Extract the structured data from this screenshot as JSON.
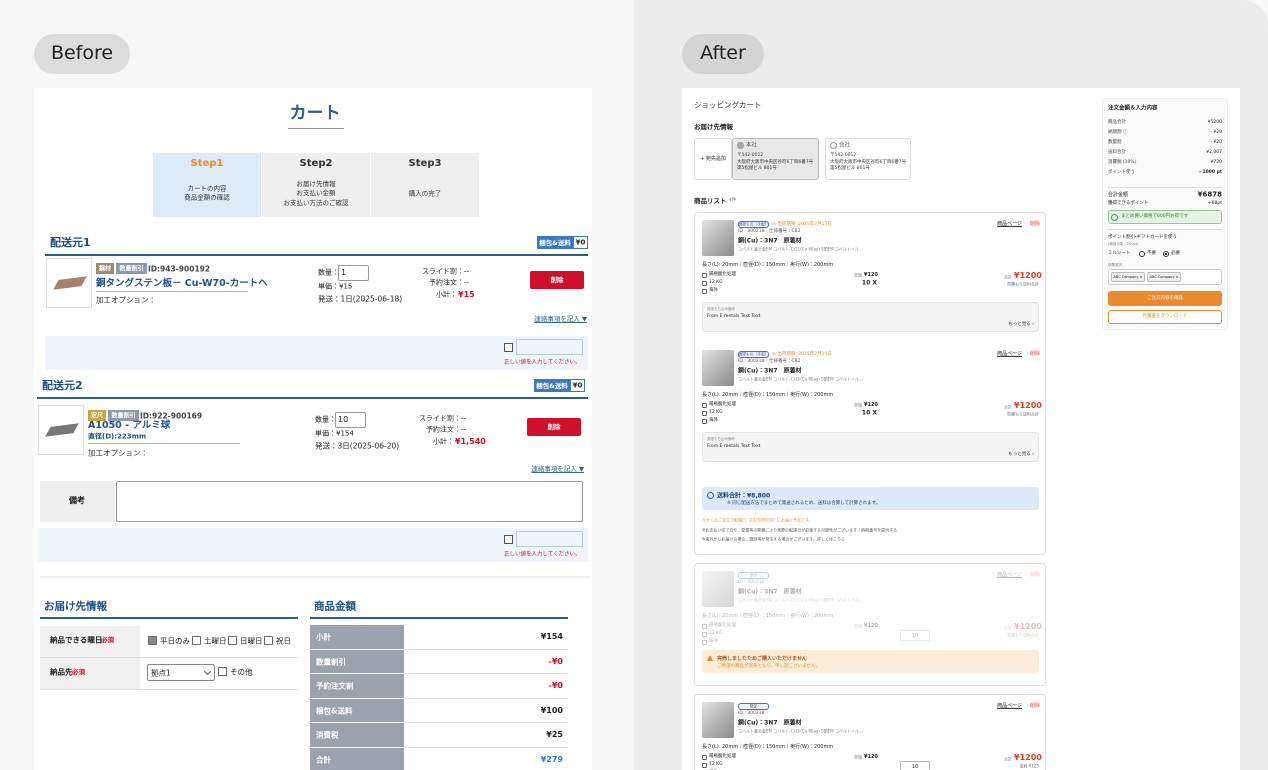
{
  "tabs": {
    "before": "Before",
    "after": "After"
  },
  "before": {
    "title": "カート",
    "steps": [
      {
        "name": "Step1",
        "desc": "カートの内容\n商品金額の確認"
      },
      {
        "name": "Step2",
        "desc": "お届け先情報\nお支払い金額\nお支払い方法のご確認"
      },
      {
        "name": "Step3",
        "desc": "購入の完了"
      }
    ],
    "shipments": [
      {
        "heading": "配送元1",
        "badge": "梱包&送料",
        "fee": "¥0",
        "tags": [
          "鋼材",
          "数量割引"
        ],
        "id": "ID:943-900192",
        "name": "銅タングステン板－ Cu-W70-カートへ",
        "option": "加工オプション：",
        "qty_label": "数量：",
        "qty": "1",
        "unit": "単価：¥15",
        "ship": "発送：1日(2025-06-18)",
        "slide": "スライド割：--",
        "reserve": "予約注文：--",
        "subtotal_label": "小計：",
        "subtotal": "¥15",
        "delete": "削除",
        "note": "連絡事項を記入 ▼",
        "error": "正しい値を入力してください。"
      },
      {
        "heading": "配送元2",
        "badge": "梱包&送料",
        "fee": "¥0",
        "tags": [
          "定尺",
          "数量割引"
        ],
        "id": "ID:922-900169",
        "name": "A1050 - アルミ球",
        "spec": "直径(D):223mm",
        "option": "加工オプション：",
        "qty_label": "数量：",
        "qty": "10",
        "unit": "単価：¥154",
        "ship": "発送：3日(2025-06-20)",
        "slide": "スライド割：--",
        "reserve": "予約注文：--",
        "subtotal_label": "小計：",
        "subtotal": "¥1,540",
        "delete": "削除",
        "note": "連絡事項を記入 ▼",
        "error": "正しい値を入力してください。"
      }
    ],
    "remarks": "備考",
    "delivery": {
      "heading": "お届け先情報",
      "days_label": "納品できる曜日",
      "dest_label": "納品先",
      "required": "必須",
      "days": [
        "平日のみ",
        "土曜日",
        "日曜日",
        "祝日"
      ],
      "dest": "拠点1",
      "other": "その他"
    },
    "amount": {
      "heading": "商品金額",
      "rows": [
        [
          "小計",
          "¥154"
        ],
        [
          "数量割引",
          "-¥0"
        ],
        [
          "予約注文割",
          "-¥0"
        ],
        [
          "梱包&送料",
          "¥100"
        ],
        [
          "消費税",
          "¥25"
        ],
        [
          "合計",
          "¥279"
        ]
      ]
    }
  },
  "after": {
    "title": "ショッピングカート",
    "address_heading": "お届け先情報",
    "add": "+ 宛先追加",
    "addresses": [
      {
        "name": "本社",
        "lines": "〒542-0012\n大阪府大阪市中央区谷町6丁目6番7号\n第5松屋ビル 801号"
      },
      {
        "name": "会社",
        "lines": "〒542-0012\n大阪府大阪市中央区谷町6丁目6番7号\n第5松屋ビル 801号"
      }
    ],
    "list_heading": "商品リスト",
    "count": "4件",
    "groups": [
      {
        "items": [
          {
            "tags": [
              "現場もの（手配）"
            ],
            "deadline": "◎ 出荷期限: 2025年7月15日",
            "id": "ID：300218｜仕様番号：C82",
            "name": "銅(Cu)：3N7　原着材",
            "desc": "コバルト基合金EM コバルト-Cr21(Cu 60ay) 5閉EM コバルトイル...",
            "size": "長さ(L): 20mm｜直径(D)：150mm｜奥行(W)：200mm",
            "finish": "陽極酸化処理",
            "weight": "12 KG",
            "origin": "海外",
            "unit_label": "単価",
            "unit": "¥120",
            "qty": "10 X",
            "total_label": "合計",
            "total": "¥1200",
            "ship_note": "見積もり送料合計",
            "page": "商品ページ",
            "delete": "削除",
            "memo_label": "発送もち込み備考",
            "memo": "From E-metals Text Text",
            "more": "もっと見る ›"
          },
          {
            "tags": [
              "現場もの（手配）"
            ],
            "deadline": "◎ 出荷期限: 2025年7月15日",
            "id": "ID：300218｜仕様番号：C82",
            "name": "銅(Cu)：3N7　原着材",
            "desc": "コバルト基合金EM コバルト-Cr21(Cu 60ay) 5閉EM コバルトイル...",
            "size": "長さ(L): 20mm｜直径(D)：150mm｜奥行(W)：200mm",
            "finish": "陽極酸化処理",
            "weight": "12 KG",
            "origin": "海外",
            "unit_label": "単価",
            "unit": "¥120",
            "qty": "10 X",
            "total_label": "合計",
            "total": "¥1200",
            "ship_note": "見積もり送料合計",
            "page": "商品ページ",
            "delete": "削除",
            "memo_label": "発送もち込み備考",
            "memo": "From E-metals Text Text",
            "more": "もっと見る ›"
          }
        ],
        "shipping": {
          "total": "送料合計：¥8,800",
          "note": "※ 同じ配送方法でまとめて発送されるため、送料は合算して計算されます。"
        },
        "notes": [
          "今からのご注文で配達日（2025/06/30）にお届け予定です。",
          "※お支払い完了日や、受領等の影響により実際の配達日が前後する可能性がございます｜納期番号を提供する",
          "※海外からお届けの場合、規制等が発生する場合がございます。詳しくはこちら"
        ]
      },
      {
        "items": [
          {
            "tags": [
              "限定"
            ],
            "id": "ID：300218",
            "name": "銅(Cu)：3N7　原着材",
            "desc": "コバルト基合金EM コバルト-Cr21(Cu 60ay) 5閉EM コバルトイル...",
            "size": "長さ(L): 20mm｜直径(D)：150mm｜奥行(W)：200mm",
            "finish": "陽極酸化処理",
            "weight": "12 KG",
            "origin": "海外",
            "unit_label": "単価",
            "unit": "¥120",
            "qty": "10",
            "total_label": "合計",
            "total": "¥1200",
            "ship_note": "見積もり送料合計",
            "page": "商品ページ",
            "delete": "削除"
          }
        ],
        "soldout": {
          "title": "完売しましたためご購入いただけません",
          "text": "ご希望の商品が完売となり、申し訳ございません。"
        }
      },
      {
        "items": [
          {
            "tags": [
              "限定"
            ],
            "id": "ID：300218",
            "name": "銅(Cu)：3N7　原着材",
            "desc": "コバルト基合金EM コバルト-Cr21(Cu 60ay) 5閉EM コバルトイル...",
            "size": "長さ(L): 20mm｜直径(D)：150mm｜奥行(W)：200mm",
            "finish": "陽極酸化処理",
            "weight": "12 KG",
            "origin": "海外",
            "unit_label": "単価",
            "unit": "¥120",
            "qty": "10",
            "total_label": "合計",
            "total": "¥1200",
            "ship_note": "送料 ¥125",
            "page": "商品ページ",
            "delete": "削除"
          }
        ]
      }
    ],
    "summary": {
      "title": "注文金額＆入力内容",
      "rows": [
        [
          "商品合計",
          "¥5200"
        ],
        [
          "納期割 ⓘ",
          "- ¥29"
        ],
        [
          "数量割",
          "- ¥20"
        ],
        [
          "送料合計",
          "¥2,007"
        ],
        [
          "消費税 (10%)",
          "¥720"
        ],
        [
          "ポイント使う",
          "- 1000 pt"
        ]
      ],
      "total_label": "合計金額",
      "total": "¥6878",
      "points_label": "獲得できるポイント",
      "points": "+68pt",
      "saving": "まとめ買い価格で600円お得です",
      "coupon": "ポイント割引・ギフトカードを使う",
      "coupon_note": "(適用可能：200pt)",
      "mill": "ミルシート",
      "no": "不要",
      "yes": "必要",
      "company_label": "部署選択",
      "companies": [
        "ABC Company ×",
        "ABC Company ×"
      ],
      "confirm": "ご注文内容を確認",
      "download": "見積書をダウンロード"
    }
  }
}
